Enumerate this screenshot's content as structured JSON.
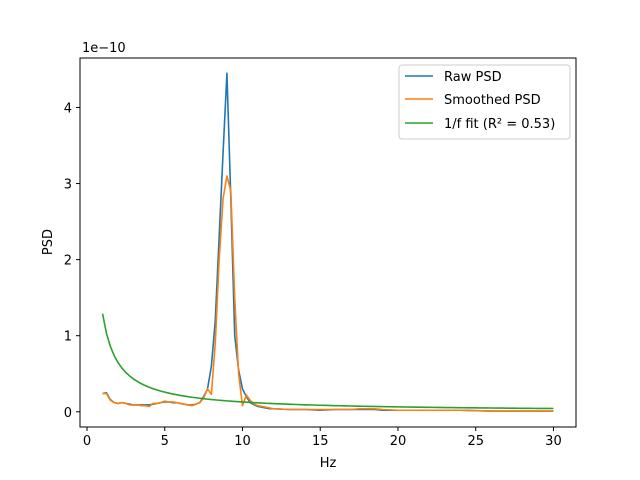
{
  "chart_data": {
    "type": "line",
    "xlabel": "Hz",
    "ylabel": "PSD",
    "offset_label": "1e−10",
    "xlim": [
      -0.45,
      31.45
    ],
    "ylim": [
      -0.2,
      4.65
    ],
    "xticks": [
      0,
      5,
      10,
      15,
      20,
      25,
      30
    ],
    "xtick_labels": [
      "0",
      "5",
      "10",
      "15",
      "20",
      "25",
      "30"
    ],
    "yticks": [
      0,
      1,
      2,
      3,
      4
    ],
    "ytick_labels": [
      "0",
      "1",
      "2",
      "3",
      "4"
    ],
    "grid": false,
    "legend_position": "top-right",
    "colors": {
      "raw": "#1f77b4",
      "smoothed": "#ff7f0e",
      "fit": "#2ca02c"
    },
    "series": [
      {
        "name": "Raw PSD",
        "x": [
          1.0,
          1.25,
          1.5,
          1.75,
          2.0,
          2.25,
          2.5,
          2.75,
          3.0,
          3.25,
          3.5,
          3.75,
          4.0,
          4.25,
          4.5,
          4.75,
          5.0,
          5.25,
          5.5,
          5.75,
          6.0,
          6.25,
          6.5,
          6.75,
          7.0,
          7.25,
          7.5,
          7.75,
          8.0,
          8.25,
          8.5,
          8.75,
          9.0,
          9.25,
          9.5,
          9.75,
          10.0,
          10.25,
          10.5,
          10.75,
          11.0,
          11.25,
          11.5,
          11.75,
          12.0,
          13.0,
          14.0,
          15.0,
          16.0,
          17.0,
          18.0,
          18.5,
          19.0,
          20.0,
          22.0,
          24.0,
          26.0,
          28.0,
          30.0
        ],
        "y": [
          0.24,
          0.25,
          0.16,
          0.12,
          0.11,
          0.12,
          0.11,
          0.1,
          0.09,
          0.09,
          0.09,
          0.09,
          0.09,
          0.1,
          0.11,
          0.12,
          0.13,
          0.13,
          0.12,
          0.12,
          0.11,
          0.1,
          0.09,
          0.09,
          0.1,
          0.12,
          0.2,
          0.3,
          0.6,
          1.2,
          2.3,
          3.4,
          4.45,
          2.8,
          1.0,
          0.55,
          0.3,
          0.2,
          0.12,
          0.09,
          0.07,
          0.06,
          0.05,
          0.04,
          0.04,
          0.03,
          0.03,
          0.02,
          0.03,
          0.03,
          0.03,
          0.03,
          0.02,
          0.02,
          0.02,
          0.02,
          0.01,
          0.01,
          0.01
        ]
      },
      {
        "name": "Smoothed PSD",
        "x": [
          1.0,
          1.25,
          1.5,
          1.75,
          2.0,
          2.25,
          2.5,
          2.75,
          3.0,
          3.25,
          3.5,
          3.75,
          4.0,
          4.25,
          4.5,
          4.75,
          5.0,
          5.25,
          5.5,
          5.75,
          6.0,
          6.25,
          6.5,
          6.75,
          7.0,
          7.25,
          7.5,
          7.75,
          8.0,
          8.25,
          8.5,
          8.75,
          9.0,
          9.25,
          9.5,
          9.75,
          10.0,
          10.25,
          10.5,
          10.75,
          11.0,
          11.25,
          11.5,
          11.75,
          12.0,
          13.0,
          14.0,
          15.0,
          16.0,
          17.0,
          17.5,
          18.0,
          18.5,
          19.0,
          20.0,
          22.0,
          24.0,
          26.0,
          28.0,
          30.0
        ],
        "y": [
          0.24,
          0.24,
          0.15,
          0.12,
          0.11,
          0.12,
          0.11,
          0.09,
          0.09,
          0.09,
          0.08,
          0.08,
          0.07,
          0.11,
          0.11,
          0.12,
          0.14,
          0.13,
          0.13,
          0.12,
          0.11,
          0.1,
          0.09,
          0.08,
          0.1,
          0.12,
          0.18,
          0.3,
          0.23,
          0.9,
          2.0,
          2.8,
          3.1,
          2.9,
          1.5,
          0.5,
          0.08,
          0.22,
          0.15,
          0.1,
          0.08,
          0.07,
          0.06,
          0.05,
          0.04,
          0.03,
          0.03,
          0.03,
          0.03,
          0.03,
          0.04,
          0.04,
          0.04,
          0.03,
          0.02,
          0.02,
          0.02,
          0.01,
          0.01,
          0.01
        ]
      },
      {
        "name": "1/f fit",
        "legend_label": "1/f fit (R² = 0.53)",
        "formula": "y = a / x",
        "coefficient": 1.29,
        "x_range": [
          1,
          30
        ]
      }
    ]
  }
}
